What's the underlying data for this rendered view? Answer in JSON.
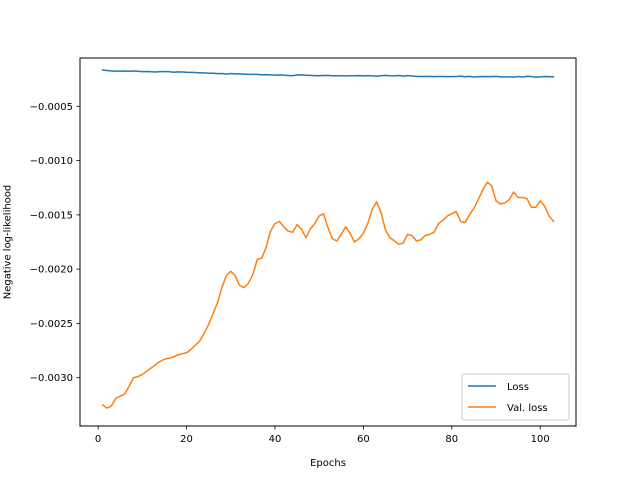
{
  "chart_data": {
    "type": "line",
    "title": "",
    "xlabel": "Epochs",
    "ylabel": "Negative log-likelihood",
    "xlim": [
      -4.1,
      108.1
    ],
    "ylim": [
      -0.003445,
      -5.5e-05
    ],
    "xticks": [
      0,
      20,
      40,
      60,
      80,
      100
    ],
    "yticks": [
      -0.003,
      -0.0025,
      -0.002,
      -0.0015,
      -0.001,
      -0.0005
    ],
    "ytick_labels": [
      "−0.0030",
      "−0.0025",
      "−0.0020",
      "−0.0015",
      "−0.0010",
      "−0.0005"
    ],
    "grid": false,
    "legend_position": "lower-right",
    "x": [
      1,
      2,
      3,
      4,
      5,
      6,
      7,
      8,
      9,
      10,
      11,
      12,
      13,
      14,
      15,
      16,
      17,
      18,
      19,
      20,
      21,
      22,
      23,
      24,
      25,
      26,
      27,
      28,
      29,
      30,
      31,
      32,
      33,
      34,
      35,
      36,
      37,
      38,
      39,
      40,
      41,
      42,
      43,
      44,
      45,
      46,
      47,
      48,
      49,
      50,
      51,
      52,
      53,
      54,
      55,
      56,
      57,
      58,
      59,
      60,
      61,
      62,
      63,
      64,
      65,
      66,
      67,
      68,
      69,
      70,
      71,
      72,
      73,
      74,
      75,
      76,
      77,
      78,
      79,
      80,
      81,
      82,
      83,
      84,
      85,
      86,
      87,
      88,
      89,
      90,
      91,
      92,
      93,
      94,
      95,
      96,
      97,
      98,
      99,
      100,
      101,
      102,
      103
    ],
    "series": [
      {
        "name": "Loss",
        "color": "#1f77b4",
        "values": [
          -0.000165,
          -0.00017,
          -0.000175,
          -0.000176,
          -0.000176,
          -0.000175,
          -0.000177,
          -0.000175,
          -0.000177,
          -0.000181,
          -0.000179,
          -0.000182,
          -0.000184,
          -0.000181,
          -0.00018,
          -0.000181,
          -0.000186,
          -0.000183,
          -0.000184,
          -0.000186,
          -0.000187,
          -0.000189,
          -0.000192,
          -0.000192,
          -0.000195,
          -0.000195,
          -0.000199,
          -0.000198,
          -0.000203,
          -0.000198,
          -0.000201,
          -0.000201,
          -0.000204,
          -0.000206,
          -0.000206,
          -0.000206,
          -0.000211,
          -0.000208,
          -0.000211,
          -0.000213,
          -0.000212,
          -0.000213,
          -0.000216,
          -0.000218,
          -0.000212,
          -0.000211,
          -0.000214,
          -0.000215,
          -0.000217,
          -0.000219,
          -0.000216,
          -0.000215,
          -0.000218,
          -0.000218,
          -0.000219,
          -0.00022,
          -0.000218,
          -0.000218,
          -0.000217,
          -0.00022,
          -0.000217,
          -0.00022,
          -0.000222,
          -0.000219,
          -0.000215,
          -0.000219,
          -0.00022,
          -0.000216,
          -0.000222,
          -0.000217,
          -0.000221,
          -0.000224,
          -0.000226,
          -0.000226,
          -0.000224,
          -0.000227,
          -0.000225,
          -0.000226,
          -0.000227,
          -0.000227,
          -0.000226,
          -0.000222,
          -0.000228,
          -0.000224,
          -0.00023,
          -0.000227,
          -0.000225,
          -0.000227,
          -0.000227,
          -0.000224,
          -0.000229,
          -0.000229,
          -0.000229,
          -0.00023,
          -0.000226,
          -0.00023,
          -0.000224,
          -0.000226,
          -0.000231,
          -0.000229,
          -0.000225,
          -0.000227,
          -0.000229
        ]
      },
      {
        "name": "Val. loss",
        "color": "#ff7f0e",
        "values": [
          -0.00325,
          -0.00328,
          -0.00326,
          -0.00319,
          -0.00317,
          -0.00315,
          -0.00308,
          -0.003,
          -0.00299,
          -0.00297,
          -0.00294,
          -0.00291,
          -0.00288,
          -0.00285,
          -0.00283,
          -0.00282,
          -0.00281,
          -0.00279,
          -0.00278,
          -0.00277,
          -0.00274,
          -0.0027,
          -0.00266,
          -0.00259,
          -0.00251,
          -0.00241,
          -0.00231,
          -0.00217,
          -0.00206,
          -0.00202,
          -0.00206,
          -0.00215,
          -0.00217,
          -0.00213,
          -0.00205,
          -0.00191,
          -0.0019,
          -0.0018,
          -0.00165,
          -0.00158,
          -0.00156,
          -0.00161,
          -0.00165,
          -0.00166,
          -0.00159,
          -0.00163,
          -0.00171,
          -0.00163,
          -0.00158,
          -0.00151,
          -0.00149,
          -0.00162,
          -0.00172,
          -0.00174,
          -0.00168,
          -0.00161,
          -0.00167,
          -0.00175,
          -0.00172,
          -0.00167,
          -0.00158,
          -0.00145,
          -0.00138,
          -0.00148,
          -0.00164,
          -0.00171,
          -0.00174,
          -0.00177,
          -0.00176,
          -0.00168,
          -0.00169,
          -0.00174,
          -0.00173,
          -0.00169,
          -0.00168,
          -0.00166,
          -0.00158,
          -0.00155,
          -0.00151,
          -0.00149,
          -0.00147,
          -0.00156,
          -0.00157,
          -0.0015,
          -0.00144,
          -0.00136,
          -0.00127,
          -0.0012,
          -0.00123,
          -0.00137,
          -0.0014,
          -0.00139,
          -0.00136,
          -0.00129,
          -0.00134,
          -0.00134,
          -0.00135,
          -0.00143,
          -0.00143,
          -0.00137,
          -0.00142,
          -0.00151,
          -0.00156
        ]
      }
    ]
  }
}
